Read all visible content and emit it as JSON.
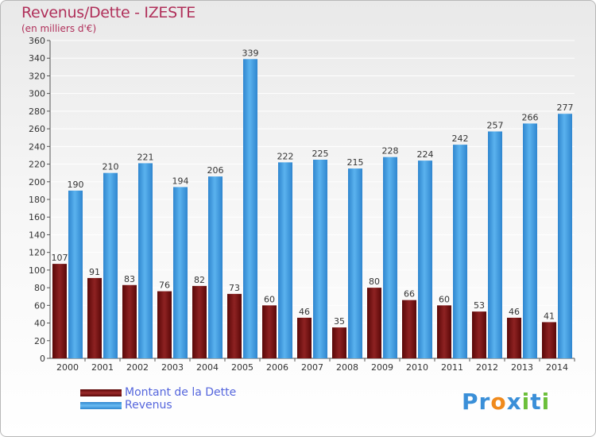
{
  "chart_data": {
    "type": "bar",
    "title": "Revenus/Dette - IZESTE",
    "subtitle": "(en milliers d'€)",
    "categories": [
      "2000",
      "2001",
      "2002",
      "2003",
      "2004",
      "2005",
      "2006",
      "2007",
      "2008",
      "2009",
      "2010",
      "2011",
      "2012",
      "2013",
      "2014"
    ],
    "series": [
      {
        "name": "Montant de la Dette",
        "color": "#7a1515",
        "values": [
          107,
          91,
          83,
          76,
          82,
          73,
          60,
          46,
          35,
          80,
          66,
          60,
          53,
          46,
          41
        ]
      },
      {
        "name": "Revenus",
        "color": "#3d9be0",
        "values": [
          190,
          210,
          221,
          194,
          206,
          339,
          222,
          225,
          215,
          228,
          224,
          242,
          257,
          266,
          277
        ]
      }
    ],
    "ylim": [
      0,
      360
    ],
    "yticks": [
      0,
      20,
      40,
      60,
      80,
      100,
      120,
      140,
      160,
      180,
      200,
      220,
      240,
      260,
      280,
      300,
      320,
      340,
      360
    ],
    "grid": true,
    "legend": "bottom-left"
  },
  "logo": {
    "text": "Proxiti",
    "letters": [
      "P",
      "r",
      "o",
      "x",
      "i",
      "t",
      "i"
    ],
    "colors": [
      "#3a8fd8",
      "#3a8fd8",
      "#f08a1c",
      "#3a8fd8",
      "#6bbf3a",
      "#3a8fd8",
      "#6bbf3a"
    ]
  }
}
